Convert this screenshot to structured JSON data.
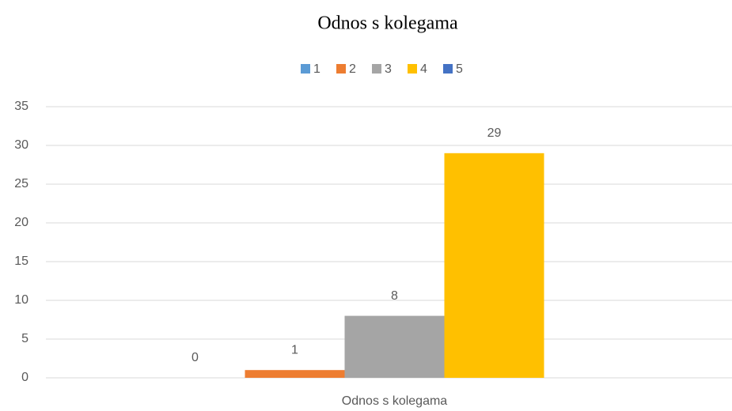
{
  "chart_data": {
    "type": "bar",
    "title": "Odnos s kolegama",
    "categories": [
      "Odnos s kolegama"
    ],
    "series": [
      {
        "name": "1",
        "color": "#5b9bd5",
        "values": [
          0
        ]
      },
      {
        "name": "2",
        "color": "#ed7d31",
        "values": [
          1
        ]
      },
      {
        "name": "3",
        "color": "#a5a5a5",
        "values": [
          8
        ]
      },
      {
        "name": "4",
        "color": "#ffc000",
        "values": [
          29
        ]
      },
      {
        "name": "5",
        "color": "#4472c4",
        "values": [
          null
        ]
      }
    ],
    "ylim": [
      0,
      35
    ],
    "yticks": [
      0,
      5,
      10,
      15,
      20,
      25,
      30,
      35
    ],
    "grid": true,
    "legend": "top"
  }
}
